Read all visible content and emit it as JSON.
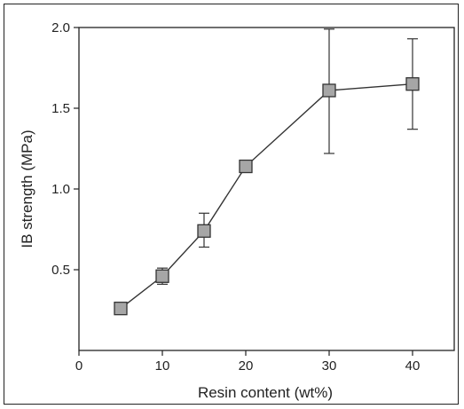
{
  "chart_data": {
    "type": "line",
    "xlabel": "Resin content (wt%)",
    "ylabel": "IB strength (MPa)",
    "xlim": [
      0,
      45
    ],
    "ylim": [
      0,
      2.0
    ],
    "xticks": [
      0,
      10,
      20,
      30,
      40
    ],
    "xtick_labels": [
      "0",
      "10",
      "20",
      "30",
      "40"
    ],
    "yticks": [
      0.5,
      1.0,
      1.5,
      2.0
    ],
    "ytick_labels": [
      "0.5",
      "1.0",
      "1.5",
      "2.0"
    ],
    "grid": false,
    "marker": "square",
    "colors": {
      "marker_fill": "#a6a6a6",
      "line": "#333333",
      "axis": "#222222"
    },
    "series": [
      {
        "x": [
          5,
          10,
          15,
          20,
          30,
          40
        ],
        "y": [
          0.26,
          0.46,
          0.74,
          1.14,
          1.61,
          1.65
        ],
        "error_low": [
          0.26,
          0.41,
          0.64,
          1.14,
          1.22,
          1.37
        ],
        "error_high": [
          0.26,
          0.51,
          0.85,
          1.14,
          1.99,
          1.93
        ]
      }
    ]
  }
}
